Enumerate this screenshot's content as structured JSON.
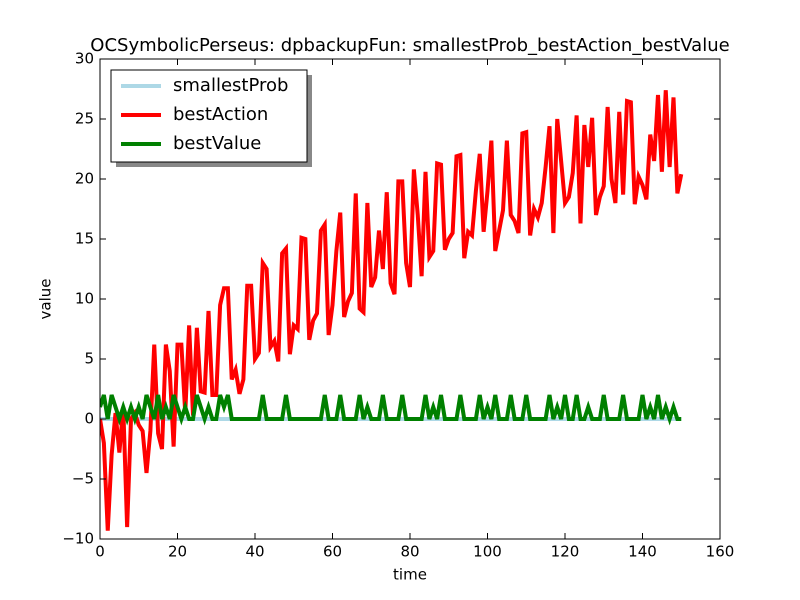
{
  "chart_data": {
    "type": "line",
    "title": "OCSymbolicPerseus: dpbackupFun: smallestProb_bestAction_bestValue",
    "x_label": "time",
    "y_label": "value",
    "x": [
      0,
      1,
      2,
      3,
      4,
      5,
      6,
      7,
      8,
      9,
      10,
      11,
      12,
      13,
      14,
      15,
      16,
      17,
      18,
      19,
      20,
      21,
      22,
      23,
      24,
      25,
      26,
      27,
      28,
      29,
      30,
      31,
      32,
      33,
      34,
      35,
      36,
      37,
      38,
      39,
      40,
      41,
      42,
      43,
      44,
      45,
      46,
      47,
      48,
      49,
      50,
      51,
      52,
      53,
      54,
      55,
      56,
      57,
      58,
      59,
      60,
      61,
      62,
      63,
      64,
      65,
      66,
      67,
      68,
      69,
      70,
      71,
      72,
      73,
      74,
      75,
      76,
      77,
      78,
      79,
      80,
      81,
      82,
      83,
      84,
      85,
      86,
      87,
      88,
      89,
      90,
      91,
      92,
      93,
      94,
      95,
      96,
      97,
      98,
      99,
      100,
      101,
      102,
      103,
      104,
      105,
      106,
      107,
      108,
      109,
      110,
      111,
      112,
      113,
      114,
      115,
      116,
      117,
      118,
      119,
      120,
      121,
      122,
      123,
      124,
      125,
      126,
      127,
      128,
      129,
      130,
      131,
      132,
      133,
      134,
      135,
      136,
      137,
      138,
      139,
      140,
      141,
      142,
      143,
      144,
      145,
      146,
      147,
      148,
      149,
      150
    ],
    "series": [
      {
        "name": "smallestProb",
        "color": "#add8e6",
        "values": [
          0,
          0,
          0,
          0,
          0,
          0,
          0,
          0,
          0,
          0,
          0,
          0,
          0,
          0,
          0,
          0,
          0,
          0,
          0,
          0,
          0,
          0,
          0,
          0,
          0,
          0,
          0,
          0,
          0,
          0,
          0,
          0,
          0,
          0,
          0,
          0,
          0,
          0,
          0,
          0,
          0,
          0,
          0,
          0,
          0,
          0,
          0,
          0,
          0,
          0,
          0,
          0,
          0,
          0,
          0,
          0,
          0,
          0,
          0,
          0,
          0,
          0,
          0,
          0,
          0,
          0,
          0,
          0,
          0,
          0,
          0,
          0,
          0,
          0,
          0,
          0,
          0,
          0,
          0,
          0,
          0,
          0,
          0,
          0,
          0,
          0,
          0,
          0,
          0,
          0,
          0,
          0,
          0,
          0,
          0,
          0,
          0,
          0,
          0,
          0,
          0,
          0,
          0,
          0,
          0,
          0,
          0,
          0,
          0,
          0,
          0,
          0,
          0,
          0,
          0,
          0,
          0,
          0,
          0,
          0,
          0,
          0,
          0,
          0,
          0,
          0,
          0,
          0,
          0,
          0,
          0,
          0,
          0,
          0,
          0,
          0,
          0,
          0,
          0,
          0,
          0,
          0,
          0,
          0,
          0,
          0,
          0,
          0,
          0,
          0,
          0
        ]
      },
      {
        "name": "bestAction",
        "color": "#ff0000",
        "values": [
          0,
          -2,
          -9.3,
          -3,
          0.5,
          -2.8,
          1,
          -9,
          0,
          0.5,
          -0.5,
          -1,
          -4.5,
          -1,
          6.2,
          -1.2,
          -2.5,
          6.2,
          4,
          -2.3,
          6.2,
          6.2,
          0.5,
          7.8,
          0.3,
          7.6,
          2.3,
          2.2,
          9,
          2,
          2,
          9.5,
          10.9,
          10.9,
          3.3,
          4.1,
          2.1,
          3.3,
          11.1,
          11.1,
          5,
          5.5,
          13,
          12.5,
          6,
          6.5,
          4.8,
          13.8,
          14.2,
          5.4,
          7.8,
          7.5,
          15.1,
          15,
          6.6,
          8.2,
          8.8,
          15.7,
          16.2,
          7,
          9.5,
          14,
          17.2,
          8.5,
          9.8,
          10.5,
          18.8,
          9.2,
          8.9,
          18,
          11,
          11.8,
          15.7,
          12.5,
          18.9,
          11.3,
          10.4,
          19.8,
          19.8,
          13,
          11,
          20.8,
          17,
          11.9,
          20.6,
          13.5,
          14,
          21.3,
          21.2,
          14.1,
          15,
          15.5,
          21.9,
          22,
          13.4,
          15.6,
          15.3,
          19,
          22.1,
          15.6,
          19,
          23.2,
          14,
          15.7,
          17.4,
          23.2,
          17,
          16.5,
          15.5,
          23.8,
          23.9,
          15.3,
          17.5,
          16.8,
          18,
          21,
          24.4,
          15.5,
          25,
          21.5,
          18,
          18.5,
          20.5,
          25.3,
          16.3,
          24.5,
          21,
          25.1,
          17,
          18.5,
          19.4,
          26,
          20,
          18,
          25.6,
          18.7,
          26.5,
          26.4,
          17.9,
          20.2,
          19.5,
          18.3,
          23.7,
          21.5,
          27,
          20.6,
          27.4,
          21,
          26.8,
          18.8,
          20.4
        ]
      },
      {
        "name": "bestValue",
        "color": "#008000",
        "values": [
          1,
          2,
          0,
          2,
          1,
          0,
          1,
          0,
          1,
          0,
          1,
          0,
          2,
          1,
          0,
          2,
          0,
          1,
          0,
          2,
          1,
          0,
          1,
          0,
          0,
          2,
          1,
          0,
          1,
          0,
          0,
          2,
          1,
          2,
          0,
          0,
          0,
          0,
          0,
          0,
          0,
          0,
          2,
          0,
          0,
          0,
          0,
          0,
          2,
          0,
          0,
          0,
          0,
          0,
          0,
          0,
          0,
          0,
          2,
          0,
          0,
          0,
          2,
          0,
          0,
          0,
          0,
          2,
          0,
          1,
          0,
          0,
          0,
          2,
          0,
          0,
          0,
          0,
          2,
          0,
          0,
          0,
          0,
          0,
          2,
          0,
          1,
          0,
          2,
          0,
          0,
          0,
          0,
          2,
          0,
          0,
          0,
          0,
          2,
          0,
          1,
          0,
          2,
          0,
          0,
          0,
          2,
          0,
          0,
          0,
          2,
          0,
          0,
          0,
          0,
          0,
          2,
          0,
          1,
          0,
          2,
          0,
          0,
          2,
          0,
          0,
          1,
          0,
          0,
          0,
          2,
          0,
          0,
          0,
          0,
          2,
          0,
          0,
          0,
          0,
          2,
          0,
          1,
          0,
          2,
          0,
          1,
          0,
          1,
          0,
          0
        ]
      }
    ],
    "xlim": [
      0,
      160
    ],
    "xticks": [
      0,
      20,
      40,
      60,
      80,
      100,
      120,
      140,
      160
    ],
    "ylim": [
      -10,
      30
    ],
    "yticks": [
      {
        "value": -10,
        "label": "−10"
      },
      {
        "value": -5,
        "label": "−5"
      },
      0,
      5,
      10,
      15,
      20,
      25,
      30
    ],
    "legend": "upper left"
  }
}
